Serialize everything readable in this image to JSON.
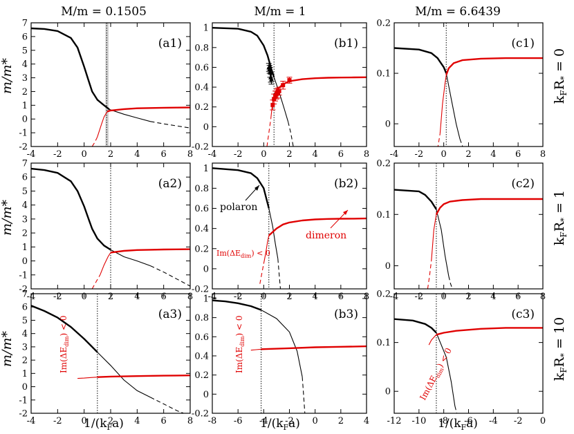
{
  "column_headers": [
    "M/m = 0.1505",
    "M/m = 1",
    "M/m = 6.6439"
  ],
  "row_labels": [
    {
      "main": "k",
      "sub1": "F",
      "mid": "R",
      "sub2": "*",
      "tail": " = 0"
    },
    {
      "main": "k",
      "sub1": "F",
      "mid": "R",
      "sub2": "*",
      "tail": " = 1"
    },
    {
      "main": "k",
      "sub1": "F",
      "mid": "R",
      "sub2": "*",
      "tail": " = 10"
    }
  ],
  "ylabel": "m/m*",
  "xlabel": {
    "pre": "1/(k",
    "sub": "F",
    "post": "a)"
  },
  "annotations": {
    "polaron": "polaron",
    "dimeron": "dimeron",
    "im_pre": "Im(ΔE",
    "im_sub": "dim",
    "im_post": ") < 0"
  },
  "colors": {
    "polaron": "#000000",
    "dimeron": "#e00000",
    "shade": "#d3d3d3"
  },
  "chart_data": [
    {
      "type": "line",
      "panel_label": "(a1)",
      "xlim": [
        -4,
        8
      ],
      "ylim": [
        -2,
        7
      ],
      "xticks": [
        -4,
        -2,
        0,
        2,
        4,
        6,
        8
      ],
      "yticks": [
        -2,
        -1,
        0,
        1,
        2,
        3,
        4,
        5,
        6,
        7
      ],
      "vline": 1.7,
      "shade": [
        1.6,
        1.85
      ],
      "series": [
        {
          "name": "polaron",
          "thick_x": [
            -4,
            -3,
            -2,
            -1,
            -0.5,
            0,
            0.3,
            0.6,
            1,
            1.5,
            1.9
          ],
          "thick_y": [
            6.6,
            6.55,
            6.4,
            5.9,
            5.2,
            3.8,
            2.9,
            2.0,
            1.4,
            1.0,
            0.7
          ],
          "thin_x": [
            1.9,
            3,
            4,
            5
          ],
          "thin_y": [
            0.7,
            0.35,
            0.08,
            -0.18
          ],
          "dash_x": [
            5,
            6,
            7,
            8
          ],
          "dash_y": [
            -0.18,
            -0.35,
            -0.5,
            -0.65
          ]
        },
        {
          "name": "dimeron",
          "thick_x": [
            1.75,
            2,
            3,
            4,
            5,
            6,
            7,
            8
          ],
          "thick_y": [
            0.55,
            0.62,
            0.72,
            0.78,
            0.8,
            0.82,
            0.83,
            0.84
          ],
          "thin_x": [
            1.0,
            1.3,
            1.5,
            1.75
          ],
          "thin_y": [
            -1.3,
            -0.4,
            0.15,
            0.55
          ],
          "dash_x": [
            0.6,
            0.8,
            1.0
          ],
          "dash_y": [
            -2,
            -1.7,
            -1.3
          ]
        }
      ]
    },
    {
      "type": "line",
      "panel_label": "(b1)",
      "xlim": [
        -4,
        8
      ],
      "ylim": [
        -0.2,
        1.05
      ],
      "xticks": [
        -4,
        -2,
        0,
        2,
        4,
        6,
        8
      ],
      "yticks": [
        -0.2,
        0,
        0.2,
        0.4,
        0.6,
        0.8,
        1
      ],
      "vline": 0.8,
      "series": [
        {
          "name": "polaron",
          "thick_x": [
            -4,
            -2,
            -1,
            -0.5,
            0,
            0.3,
            0.6,
            0.8
          ],
          "thick_y": [
            1.0,
            0.99,
            0.96,
            0.92,
            0.82,
            0.72,
            0.58,
            0.5
          ],
          "thin_x": [
            0.8,
            1.2,
            1.6,
            1.9
          ],
          "thin_y": [
            0.5,
            0.35,
            0.18,
            0.05
          ],
          "dash_x": [
            1.9,
            2.1,
            2.3
          ],
          "dash_y": [
            0.05,
            -0.06,
            -0.2
          ]
        },
        {
          "name": "dimeron",
          "thick_x": [
            0.8,
            1,
            1.5,
            2,
            3,
            4,
            5,
            6,
            7,
            8
          ],
          "thick_y": [
            0.31,
            0.37,
            0.43,
            0.46,
            0.48,
            0.49,
            0.495,
            0.497,
            0.498,
            0.5
          ],
          "thin_x": [
            0.55,
            0.65,
            0.75,
            0.8
          ],
          "thin_y": [
            0.08,
            0.2,
            0.27,
            0.31
          ],
          "dash_x": [
            0.25,
            0.4,
            0.55
          ],
          "dash_y": [
            -0.2,
            -0.06,
            0.08
          ]
        },
        {
          "name": "polaron-data",
          "points_x": [
            0.4,
            0.45,
            0.5,
            0.55,
            0.6
          ],
          "points_y": [
            0.6,
            0.58,
            0.55,
            0.5,
            0.48
          ],
          "err": [
            0.04,
            0.04,
            0.05,
            0.05,
            0.05
          ]
        },
        {
          "name": "dimeron-data",
          "points_x": [
            0.7,
            0.8,
            0.9,
            1.0,
            1.1,
            1.2,
            1.5,
            2.0
          ],
          "points_y": [
            0.22,
            0.28,
            0.31,
            0.33,
            0.34,
            0.36,
            0.42,
            0.47
          ],
          "err": [
            0.05,
            0.05,
            0.05,
            0.05,
            0.05,
            0.04,
            0.04,
            0.03
          ]
        }
      ]
    },
    {
      "type": "line",
      "panel_label": "(c1)",
      "xlim": [
        -4,
        8
      ],
      "ylim": [
        -0.045,
        0.2
      ],
      "xticks": [
        -4,
        -2,
        0,
        2,
        4,
        6,
        8
      ],
      "yticks": [
        0,
        0.1,
        0.2
      ],
      "vline": 0.2,
      "series": [
        {
          "name": "polaron",
          "thick_x": [
            -4,
            -2,
            -1,
            -0.5,
            0,
            0.2
          ],
          "thick_y": [
            0.15,
            0.147,
            0.14,
            0.13,
            0.112,
            0.1
          ],
          "thin_x": [
            0.2,
            0.6,
            1.0,
            1.3
          ],
          "thin_y": [
            0.1,
            0.05,
            0.0,
            -0.03
          ],
          "dash_x": [
            1.3,
            1.45,
            1.6
          ],
          "dash_y": [
            -0.03,
            -0.04,
            -0.05
          ]
        },
        {
          "name": "dimeron",
          "thick_x": [
            0.2,
            0.4,
            0.8,
            1.5,
            3,
            5,
            8
          ],
          "thick_y": [
            0.097,
            0.11,
            0.12,
            0.126,
            0.129,
            0.13,
            0.13
          ],
          "thin_x": [
            -0.3,
            -0.1,
            0.1,
            0.2
          ],
          "thin_y": [
            -0.02,
            0.04,
            0.08,
            0.097
          ],
          "dash_x": [
            -0.5,
            -0.4,
            -0.3
          ],
          "dash_y": [
            -0.05,
            -0.035,
            -0.02
          ]
        }
      ]
    },
    {
      "type": "line",
      "panel_label": "(a2)",
      "xlim": [
        -4,
        8
      ],
      "ylim": [
        -2,
        7
      ],
      "xticks": [
        -4,
        -2,
        0,
        2,
        4,
        6,
        8
      ],
      "yticks": [
        -2,
        -1,
        0,
        1,
        2,
        3,
        4,
        5,
        6,
        7
      ],
      "vline": 2.0,
      "series": [
        {
          "name": "polaron",
          "thick_x": [
            -4,
            -3,
            -2,
            -1,
            -0.5,
            0,
            0.3,
            0.6,
            1,
            1.5,
            2
          ],
          "thick_y": [
            6.6,
            6.5,
            6.3,
            5.7,
            5.0,
            3.9,
            3.1,
            2.3,
            1.6,
            1.1,
            0.8
          ],
          "thin_x": [
            2,
            3,
            4,
            5
          ],
          "thin_y": [
            0.8,
            0.3,
            0.0,
            -0.35
          ],
          "dash_x": [
            5,
            6,
            7,
            8
          ],
          "dash_y": [
            -0.35,
            -0.8,
            -1.3,
            -1.8
          ]
        },
        {
          "name": "dimeron",
          "thick_x": [
            2,
            3,
            4,
            5,
            6,
            7,
            8
          ],
          "thick_y": [
            0.6,
            0.72,
            0.78,
            0.8,
            0.82,
            0.83,
            0.84
          ],
          "thin_x": [
            1.2,
            1.5,
            1.8,
            2
          ],
          "thin_y": [
            -1.0,
            -0.3,
            0.3,
            0.6
          ],
          "dash_x": [
            0.6,
            0.9,
            1.2
          ],
          "dash_y": [
            -2,
            -1.5,
            -1.0
          ]
        }
      ]
    },
    {
      "type": "line",
      "panel_label": "(b2)",
      "xlim": [
        -4,
        8
      ],
      "ylim": [
        -0.2,
        1.05
      ],
      "xticks": [
        -4,
        -2,
        0,
        2,
        4,
        6,
        8
      ],
      "yticks": [
        -0.2,
        0,
        0.2,
        0.4,
        0.6,
        0.8,
        1
      ],
      "vline": 0.4,
      "series": [
        {
          "name": "polaron",
          "thick_x": [
            -4,
            -2,
            -1,
            -0.5,
            0,
            0.4
          ],
          "thick_y": [
            1.0,
            0.98,
            0.95,
            0.9,
            0.8,
            0.6
          ],
          "thin_x": [
            0.4,
            0.7,
            0.9,
            1.1
          ],
          "thin_y": [
            0.6,
            0.42,
            0.25,
            0.1
          ],
          "dash_x": [
            1.1,
            1.2,
            1.3
          ],
          "dash_y": [
            0.1,
            -0.05,
            -0.2
          ]
        },
        {
          "name": "dimeron",
          "thick_x": [
            0.4,
            1,
            1.5,
            2,
            3,
            4,
            5,
            6,
            7,
            8
          ],
          "thick_y": [
            0.33,
            0.4,
            0.44,
            0.46,
            0.48,
            0.49,
            0.495,
            0.497,
            0.498,
            0.5
          ],
          "thin_x": [
            0.0,
            0.15,
            0.3,
            0.4
          ],
          "thin_y": [
            0.05,
            0.15,
            0.27,
            0.33
          ],
          "dash_x": [
            -0.3,
            -0.15,
            0.0
          ],
          "dash_y": [
            -0.15,
            -0.05,
            0.05
          ]
        }
      ]
    },
    {
      "type": "line",
      "panel_label": "(c2)",
      "xlim": [
        -4,
        8
      ],
      "ylim": [
        -0.045,
        0.2
      ],
      "xticks": [
        -4,
        -2,
        0,
        2,
        4,
        6,
        8
      ],
      "yticks": [
        0,
        0.1,
        0.2
      ],
      "vline": -0.6,
      "series": [
        {
          "name": "polaron",
          "thick_x": [
            -4,
            -2,
            -1.5,
            -1,
            -0.6
          ],
          "thick_y": [
            0.148,
            0.145,
            0.138,
            0.125,
            0.11
          ],
          "thin_x": [
            -0.6,
            -0.2,
            0.1,
            0.4
          ],
          "thin_y": [
            0.11,
            0.07,
            0.02,
            -0.02
          ],
          "dash_x": [
            0.4,
            0.55,
            0.7
          ],
          "dash_y": [
            -0.02,
            -0.035,
            -0.045
          ]
        },
        {
          "name": "dimeron",
          "thick_x": [
            -0.6,
            -0.3,
            0,
            0.5,
            1.5,
            3,
            5,
            8
          ],
          "thick_y": [
            0.1,
            0.113,
            0.12,
            0.125,
            0.128,
            0.13,
            0.13,
            0.13
          ],
          "thin_x": [
            -1.0,
            -0.8,
            -0.6
          ],
          "thin_y": [
            0.01,
            0.07,
            0.1
          ],
          "dash_x": [
            -1.3,
            -1.15,
            -1.0
          ],
          "dash_y": [
            -0.045,
            -0.02,
            0.01
          ]
        }
      ]
    },
    {
      "type": "line",
      "panel_label": "(a3)",
      "xlim": [
        -4,
        8
      ],
      "ylim": [
        -2,
        7
      ],
      "xticks": [
        -4,
        -2,
        0,
        2,
        4,
        6,
        8
      ],
      "yticks": [
        -2,
        -1,
        0,
        1,
        2,
        3,
        4,
        5,
        6,
        7
      ],
      "vline": 1.0,
      "series": [
        {
          "name": "polaron",
          "thick_x": [
            -4,
            -3,
            -2,
            -1,
            0,
            0.5,
            1
          ],
          "thick_y": [
            6.1,
            5.7,
            5.2,
            4.5,
            3.6,
            3.1,
            2.6
          ],
          "thin_x": [
            1,
            2,
            3,
            4,
            5
          ],
          "thin_y": [
            2.6,
            1.6,
            0.5,
            -0.3,
            -0.8
          ],
          "dash_x": [
            5,
            6,
            7,
            7.5
          ],
          "dash_y": [
            -0.8,
            -1.3,
            -1.8,
            -2.0
          ]
        },
        {
          "name": "dimeron",
          "thick_x": [
            1,
            2,
            4,
            6,
            8
          ],
          "thick_y": [
            0.72,
            0.76,
            0.8,
            0.83,
            0.85
          ],
          "thin_x": [
            -0.5,
            0,
            0.5,
            1
          ],
          "thin_y": [
            0.62,
            0.65,
            0.69,
            0.72
          ],
          "dash_x": [],
          "dash_y": []
        }
      ]
    },
    {
      "type": "line",
      "panel_label": "(b3)",
      "xlim": [
        -8,
        4
      ],
      "ylim": [
        -0.2,
        1.05
      ],
      "xticks": [
        -8,
        -6,
        -4,
        -2,
        0,
        2,
        4
      ],
      "yticks": [
        -0.2,
        0,
        0.2,
        0.4,
        0.6,
        0.8,
        1
      ],
      "vline": -4.2,
      "series": [
        {
          "name": "polaron",
          "thick_x": [
            -8,
            -7,
            -6,
            -5,
            -4.2
          ],
          "thick_y": [
            0.98,
            0.97,
            0.95,
            0.92,
            0.88
          ],
          "thin_x": [
            -4.2,
            -3,
            -2,
            -1.4,
            -1.0
          ],
          "thin_y": [
            0.88,
            0.79,
            0.65,
            0.45,
            0.18
          ],
          "dash_x": [
            -1.0,
            -0.9,
            -0.8
          ],
          "dash_y": [
            0.18,
            0.0,
            -0.2
          ]
        },
        {
          "name": "dimeron",
          "thick_x": [
            -4.2,
            -3,
            -2,
            0,
            2,
            4
          ],
          "thick_y": [
            0.47,
            0.475,
            0.48,
            0.49,
            0.495,
            0.5
          ],
          "thin_x": [
            -5,
            -4.6,
            -4.2
          ],
          "thin_y": [
            0.46,
            0.465,
            0.47
          ],
          "dash_x": [],
          "dash_y": []
        }
      ]
    },
    {
      "type": "line",
      "panel_label": "(c3)",
      "xlim": [
        -12,
        0
      ],
      "ylim": [
        -0.045,
        0.2
      ],
      "xticks": [
        -12,
        -10,
        -8,
        -6,
        -4,
        -2,
        0
      ],
      "yticks": [
        0,
        0.1,
        0.2
      ],
      "vline": -8.6,
      "series": [
        {
          "name": "polaron",
          "thick_x": [
            -12,
            -10.5,
            -9.5,
            -9,
            -8.6
          ],
          "thick_y": [
            0.148,
            0.145,
            0.138,
            0.13,
            0.12
          ],
          "thin_x": [
            -8.6,
            -7.8,
            -7.4,
            -7.1
          ],
          "thin_y": [
            0.12,
            0.07,
            0.02,
            -0.03
          ],
          "dash_x": [
            -7.1,
            -7.0,
            -6.9
          ],
          "dash_y": [
            -0.03,
            -0.04,
            -0.05
          ]
        },
        {
          "name": "dimeron",
          "thick_x": [
            -8.6,
            -8,
            -7,
            -5,
            -3,
            0
          ],
          "thick_y": [
            0.116,
            0.12,
            0.124,
            0.128,
            0.13,
            0.13
          ],
          "thin_x": [
            -9.2,
            -9,
            -8.6
          ],
          "thin_y": [
            0.095,
            0.105,
            0.116
          ],
          "dash_x": [],
          "dash_y": []
        }
      ]
    }
  ]
}
